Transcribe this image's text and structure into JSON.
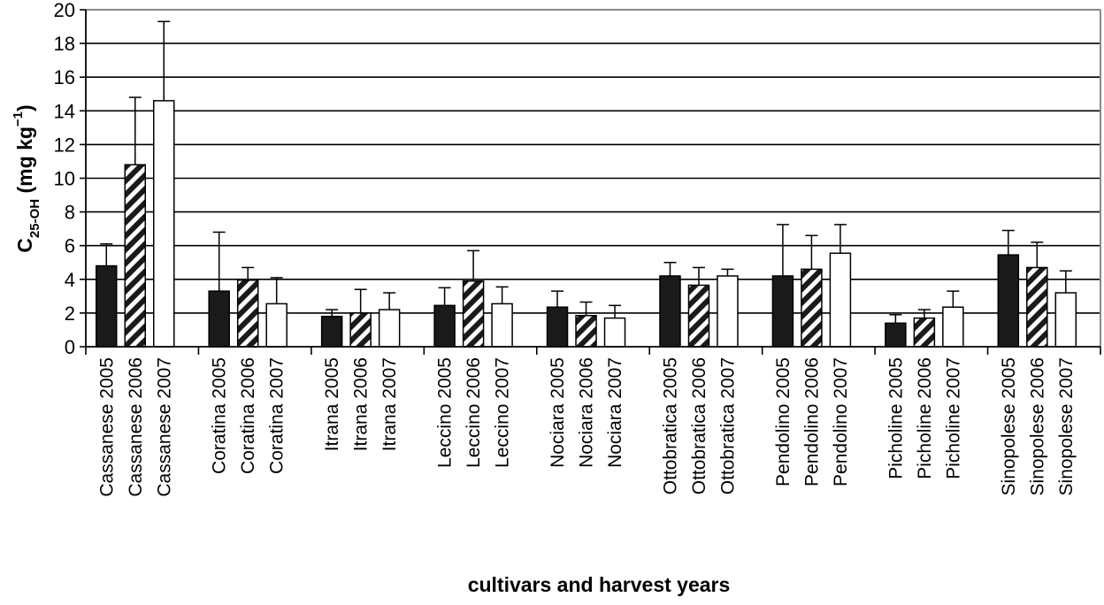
{
  "chart_data": {
    "type": "bar",
    "xlabel": "cultivars and harvest years",
    "ylabel": {
      "main": "C",
      "sub": "25-OH",
      "unit_pre": " (mg kg",
      "unit_sup": "−1",
      "unit_post": ")"
    },
    "ylim": [
      0,
      20
    ],
    "yticks": [
      "0",
      "2",
      "4",
      "6",
      "8",
      "10",
      "12",
      "14",
      "16",
      "18",
      "20"
    ],
    "grid": true,
    "legend": "none",
    "groups": [
      {
        "cultivar": "Cassanese",
        "bars": [
          {
            "label": "Cassanese 2005",
            "year": "2005",
            "value": 4.8,
            "err": 1.3
          },
          {
            "label": "Cassanese 2006",
            "year": "2006",
            "value": 10.8,
            "err": 4.0
          },
          {
            "label": "Cassanese 2007",
            "year": "2007",
            "value": 14.6,
            "err": 4.7
          }
        ]
      },
      {
        "cultivar": "Coratina",
        "bars": [
          {
            "label": "Coratina 2005",
            "year": "2005",
            "value": 3.3,
            "err": 3.5
          },
          {
            "label": "Coratina 2006",
            "year": "2006",
            "value": 3.95,
            "err": 0.75
          },
          {
            "label": "Coratina 2007",
            "year": "2007",
            "value": 2.55,
            "err": 1.55
          }
        ]
      },
      {
        "cultivar": "Itrana",
        "bars": [
          {
            "label": "Itrana 2005",
            "year": "2005",
            "value": 1.8,
            "err": 0.4
          },
          {
            "label": "Itrana 2006",
            "year": "2006",
            "value": 2.0,
            "err": 1.4
          },
          {
            "label": "Itrana 2007",
            "year": "2007",
            "value": 2.2,
            "err": 1.0
          }
        ]
      },
      {
        "cultivar": "Leccino",
        "bars": [
          {
            "label": "Leccino 2005",
            "year": "2005",
            "value": 2.45,
            "err": 1.05
          },
          {
            "label": "Leccino 2006",
            "year": "2006",
            "value": 3.9,
            "err": 1.8
          },
          {
            "label": "Leccino 2007",
            "year": "2007",
            "value": 2.55,
            "err": 1.0
          }
        ]
      },
      {
        "cultivar": "Nociara",
        "bars": [
          {
            "label": "Nociara 2005",
            "year": "2005",
            "value": 2.35,
            "err": 0.95
          },
          {
            "label": "Nociara 2006",
            "year": "2006",
            "value": 1.85,
            "err": 0.8
          },
          {
            "label": "Nociara 2007",
            "year": "2007",
            "value": 1.7,
            "err": 0.75
          }
        ]
      },
      {
        "cultivar": "Ottobratica",
        "bars": [
          {
            "label": "Ottobratica 2005",
            "year": "2005",
            "value": 4.2,
            "err": 0.8
          },
          {
            "label": "Ottobratica 2006",
            "year": "2006",
            "value": 3.65,
            "err": 1.05
          },
          {
            "label": "Ottobratica 2007",
            "year": "2007",
            "value": 4.2,
            "err": 0.4
          }
        ]
      },
      {
        "cultivar": "Pendolino",
        "bars": [
          {
            "label": "Pendolino 2005",
            "year": "2005",
            "value": 4.2,
            "err": 3.05
          },
          {
            "label": "Pendolino 2006",
            "year": "2006",
            "value": 4.6,
            "err": 2.0
          },
          {
            "label": "Pendolino 2007",
            "year": "2007",
            "value": 5.55,
            "err": 1.7
          }
        ]
      },
      {
        "cultivar": "Picholine",
        "bars": [
          {
            "label": "Picholine 2005",
            "year": "2005",
            "value": 1.4,
            "err": 0.5
          },
          {
            "label": "Picholine 2006",
            "year": "2006",
            "value": 1.7,
            "err": 0.5
          },
          {
            "label": "Picholine 2007",
            "year": "2007",
            "value": 2.35,
            "err": 0.95
          }
        ]
      },
      {
        "cultivar": "Sinopolese",
        "bars": [
          {
            "label": "Sinopolese 2005",
            "year": "2005",
            "value": 5.45,
            "err": 1.45
          },
          {
            "label": "Sinopolese 2006",
            "year": "2006",
            "value": 4.7,
            "err": 1.5
          },
          {
            "label": "Sinopolese 2007",
            "year": "2007",
            "value": 3.2,
            "err": 1.3
          }
        ]
      }
    ],
    "fills": {
      "2005": "solid-black",
      "2006": "black-white-diagonal-stripes",
      "2007": "white"
    },
    "colors": {
      "bar_dark": "#1a1a1a",
      "bar_light": "#ffffff",
      "grid": "#000000",
      "frame": "#888888"
    }
  }
}
